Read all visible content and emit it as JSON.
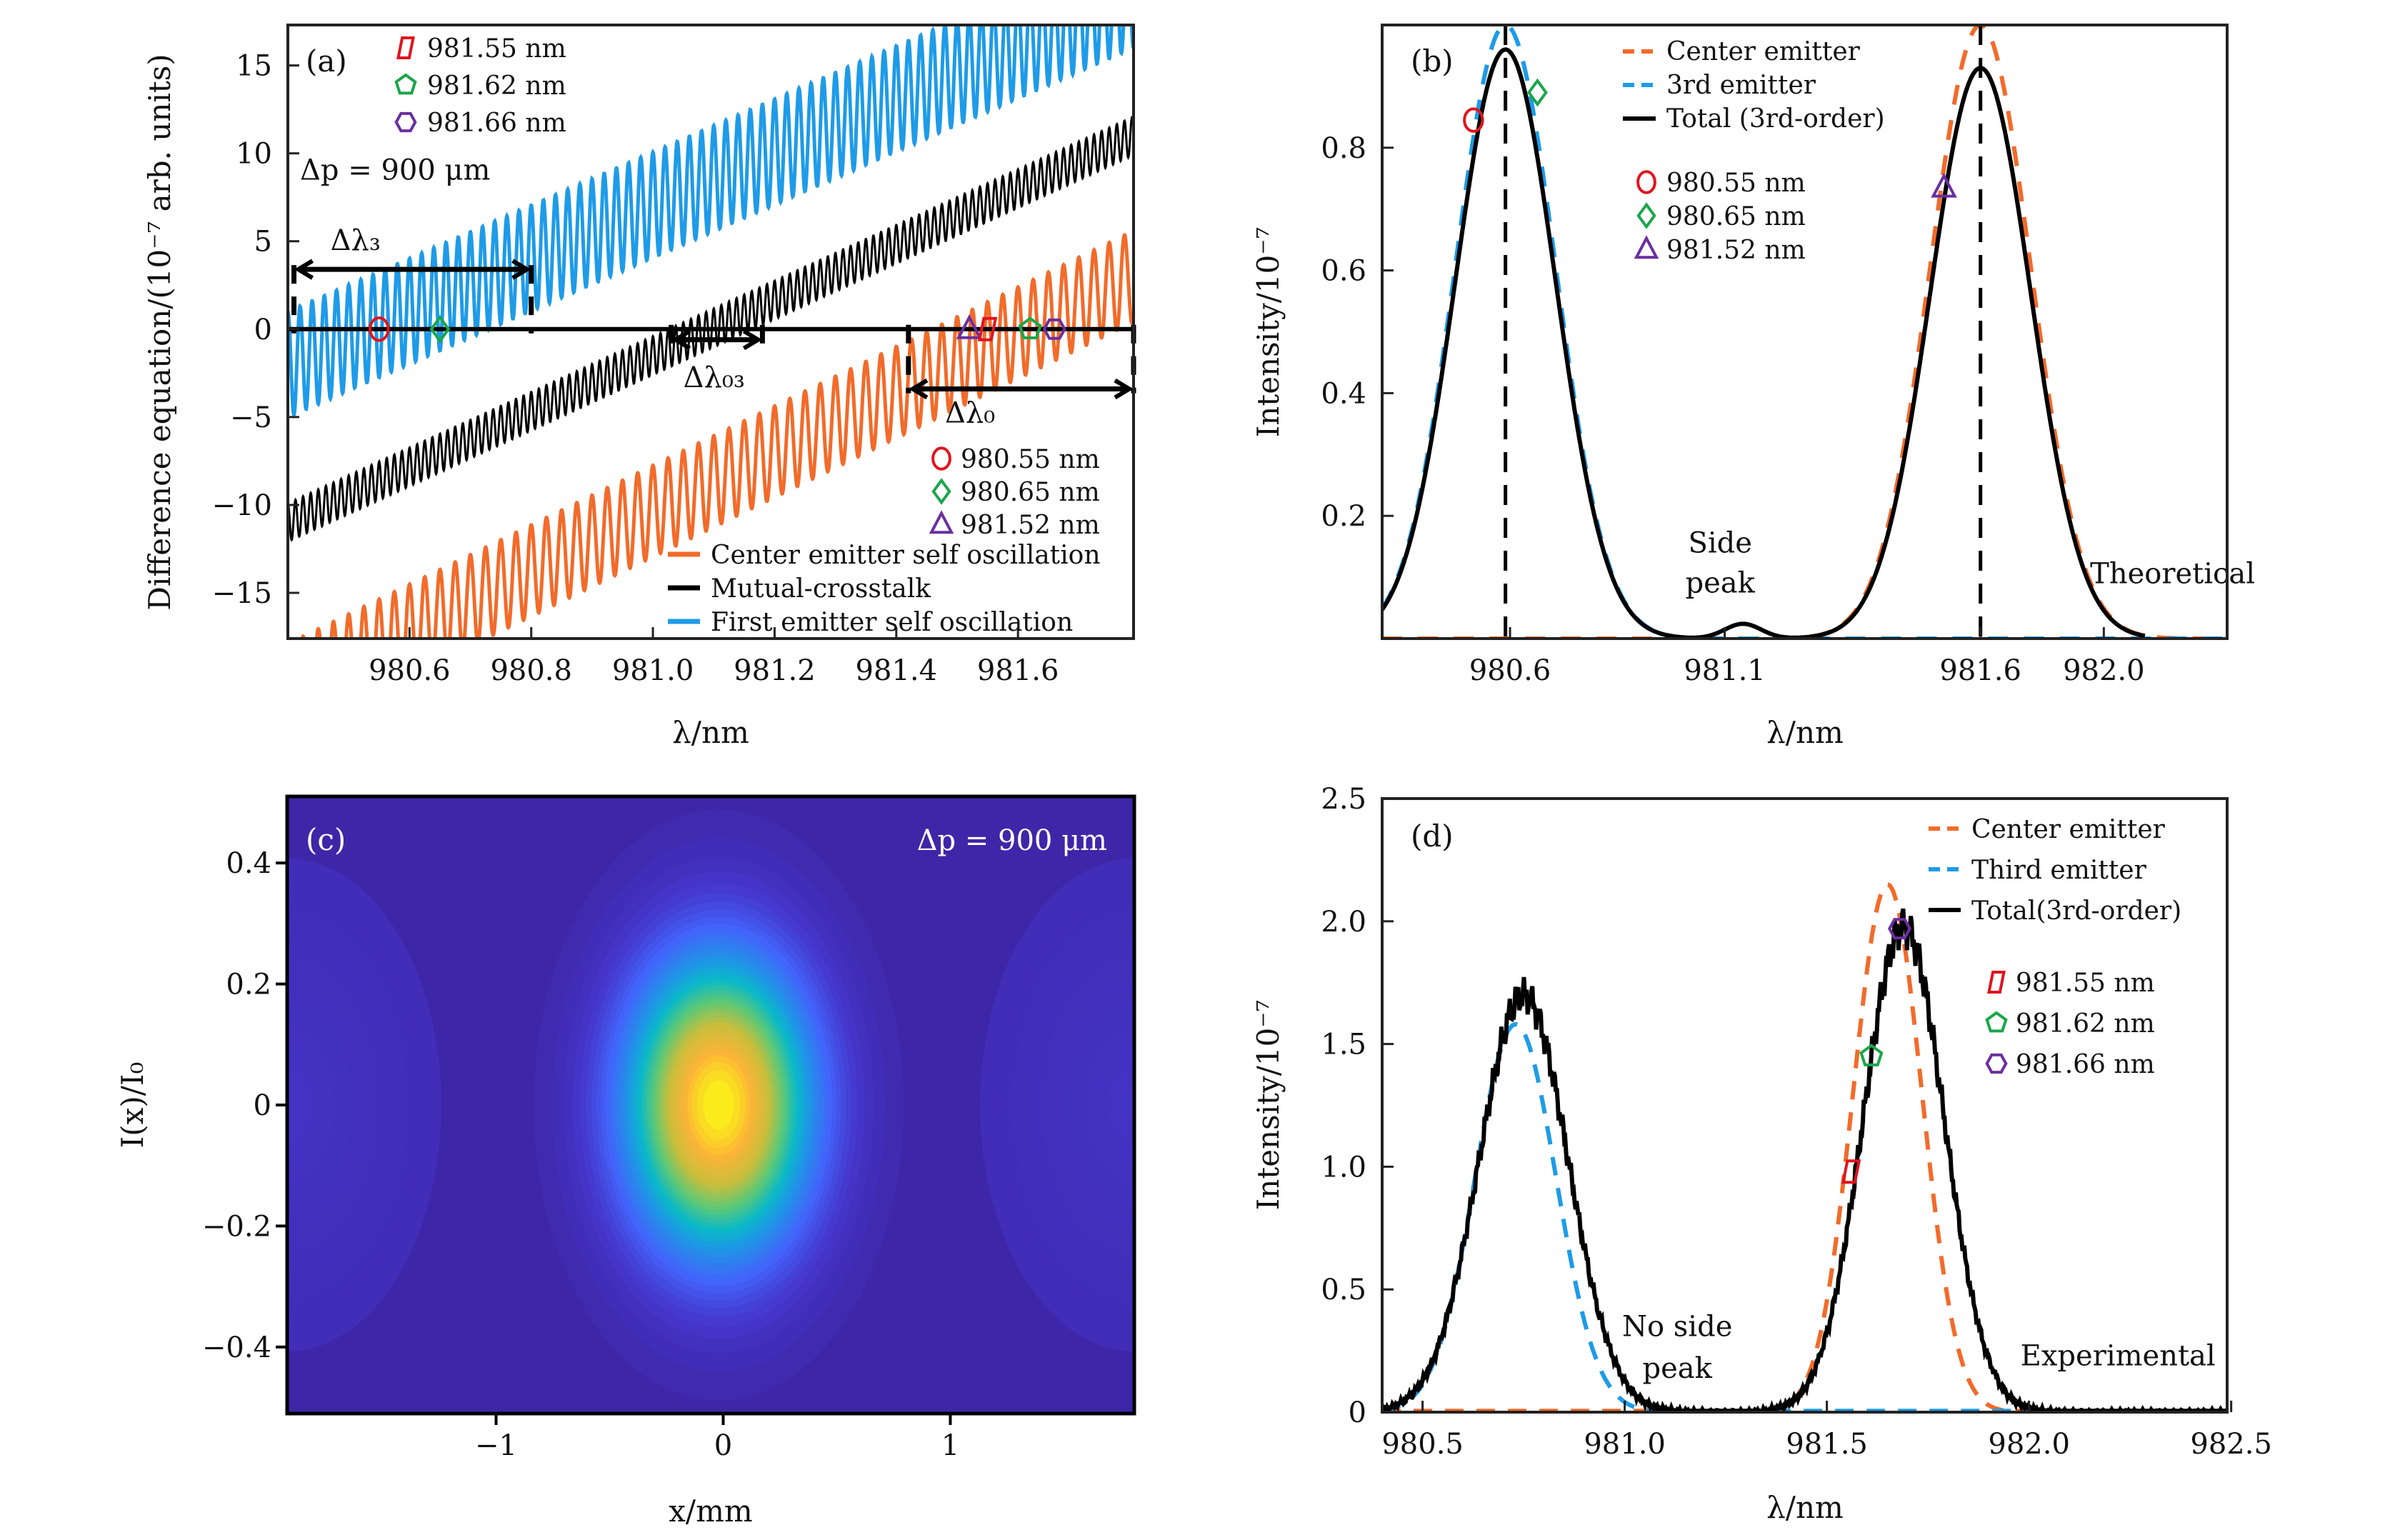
{
  "figure": {
    "colors": {
      "center": "#f26b2a",
      "first": "#1e9be8",
      "black": "#000000",
      "red": "#e0141e",
      "green": "#1aa64a",
      "purple": "#6a2fa0",
      "heatmap_bg": "#3e26a8"
    }
  },
  "chart_data": [
    {
      "id": "a",
      "type": "line",
      "panel_tag": "(a)",
      "title": "",
      "xlabel": "λ/nm",
      "ylabel": "Difference equation/(10⁻⁷ arb. units)",
      "xlim": [
        980.4,
        981.79
      ],
      "ylim": [
        -17.6,
        17.3
      ],
      "xticks": [
        980.6,
        980.8,
        981.0,
        981.2,
        981.4,
        981.6
      ],
      "xtick_labels": [
        "980.6",
        "980.8",
        "981.0",
        "981.2",
        "981.4",
        "981.6"
      ],
      "yticks": [
        -15,
        -10,
        -5,
        0,
        5,
        10,
        15
      ],
      "ytick_labels": [
        "−15",
        "−10",
        "−5",
        "0",
        "5",
        "10",
        "15"
      ],
      "grid": false,
      "series": [
        {
          "name": "Center emitter self oscillation",
          "color_key": "center",
          "style": "solid",
          "offset_at_xmin": -20.5,
          "offset_at_xmax": 3.0,
          "amplitude": 2.6,
          "period_nm": 0.025
        },
        {
          "name": "Mutual-crosstalk",
          "color_key": "black",
          "style": "solid",
          "offset_at_xmin": -11.0,
          "offset_at_xmax": 11.0,
          "amplitude": 1.1,
          "period_nm": 0.0125
        },
        {
          "name": "First emitter self oscillation",
          "color_key": "first",
          "style": "solid",
          "offset_at_xmin": -2.0,
          "offset_at_xmax": 19.0,
          "amplitude": 3.0,
          "period_nm": 0.02
        }
      ],
      "annotations": [
        {
          "text": "Δp = 900 μm",
          "x": 980.42,
          "y": 8.5
        },
        {
          "text": "Δλ₃",
          "x": 980.47,
          "y": 4.5
        },
        {
          "text": "Δλ₀₃",
          "x": 981.05,
          "y": -3.3
        },
        {
          "text": "Δλ₀",
          "x": 981.48,
          "y": -5.3
        }
      ],
      "spans": [
        {
          "label": "Δλ3",
          "x0": 980.41,
          "x1": 980.8,
          "y_arrow": 3.4
        },
        {
          "label": "Δλ03",
          "x0": 981.03,
          "x1": 981.18,
          "y_arrow": -0.6
        },
        {
          "label": "Δλ0",
          "x0": 981.42,
          "x1": 981.79,
          "y_arrow": -3.4
        }
      ],
      "markers": [
        {
          "label": "980.55 nm",
          "shape": "circle",
          "color_key": "red",
          "x": 980.55,
          "y": 0
        },
        {
          "label": "980.65 nm",
          "shape": "diamond",
          "color_key": "green",
          "x": 980.65,
          "y": 0
        },
        {
          "label": "981.52 nm",
          "shape": "triangle",
          "color_key": "purple",
          "x": 981.52,
          "y": 0
        },
        {
          "label": "981.55 nm",
          "shape": "parallelogram",
          "color_key": "red",
          "x": 981.55,
          "y": 0
        },
        {
          "label": "981.62 nm",
          "shape": "pentagon",
          "color_key": "green",
          "x": 981.62,
          "y": 0
        },
        {
          "label": "981.66 nm",
          "shape": "hexagon",
          "color_key": "purple",
          "x": 981.66,
          "y": 0
        }
      ],
      "legend_top_left": [
        "981.55 nm",
        "981.62 nm",
        "981.66 nm"
      ],
      "legend_bottom_right_markers": [
        "980.55 nm",
        "980.65 nm",
        "981.52 nm"
      ],
      "legend_bottom_right_lines": [
        "Center emitter self oscillation",
        "Mutual-crosstalk",
        "First emitter self oscillation"
      ],
      "legend_placement": "top-left and bottom-right"
    },
    {
      "id": "b",
      "type": "line",
      "panel_tag": "(b)",
      "xlabel": "λ/nm",
      "ylabel": "Intensity/10⁻⁷",
      "xlim": [
        980.35,
        982.2
      ],
      "ylim": [
        0,
        1.0
      ],
      "xtick_labels": [
        "980.6",
        "981.1",
        "981.6",
        "982.0"
      ],
      "xtick_positions": [
        980.63,
        981.1,
        981.66,
        981.93
      ],
      "yticks": [
        0.2,
        0.4,
        0.6,
        0.8
      ],
      "ytick_labels": [
        "0.2",
        "0.4",
        "0.6",
        "0.8"
      ],
      "grid": false,
      "series": [
        {
          "name": "Center emitter",
          "color_key": "center",
          "style": "dashed",
          "peaks": [
            {
              "x": 981.66,
              "height": 1.0,
              "sigma": 0.11
            }
          ]
        },
        {
          "name": "3rd emitter",
          "color_key": "first",
          "style": "dashed",
          "peaks": [
            {
              "x": 980.62,
              "height": 1.0,
              "sigma": 0.11
            }
          ]
        },
        {
          "name": "Total (3rd-order)",
          "color_key": "black",
          "style": "solid",
          "peaks": [
            {
              "x": 980.62,
              "height": 0.96,
              "sigma": 0.11
            },
            {
              "x": 981.66,
              "height": 0.93,
              "sigma": 0.11
            },
            {
              "x": 981.14,
              "height": 0.024,
              "sigma": 0.04
            }
          ]
        }
      ],
      "vlines": [
        980.62,
        981.66
      ],
      "markers": [
        {
          "label": "980.55 nm",
          "shape": "circle",
          "color_key": "red",
          "x": 980.55,
          "y": 0.845
        },
        {
          "label": "980.65 nm",
          "shape": "diamond",
          "color_key": "green",
          "x": 980.69,
          "y": 0.89
        },
        {
          "label": "981.52 nm",
          "shape": "triangle",
          "color_key": "purple",
          "x": 981.58,
          "y": 0.735
        }
      ],
      "annotations": [
        {
          "text": "Side",
          "x": 981.09,
          "y": 0.14
        },
        {
          "text": "peak",
          "x": 981.09,
          "y": 0.075
        },
        {
          "text": "Theoretical",
          "x": 981.9,
          "y": 0.09
        }
      ],
      "legend_lines": [
        "Center emitter",
        "3rd emitter",
        "Total (3rd-order)"
      ],
      "legend_markers": [
        "980.55 nm",
        "980.65 nm",
        "981.52 nm"
      ],
      "legend_placement": "top-center"
    },
    {
      "id": "c",
      "type": "heatmap",
      "panel_tag": "(c)",
      "xlabel": "x/mm",
      "ylabel": "I(x)/I₀",
      "xlim": [
        -1.92,
        1.81
      ],
      "ylim": [
        -0.51,
        0.51
      ],
      "xticks": [
        -1,
        0,
        1
      ],
      "xtick_labels": [
        "−1",
        "0",
        "1"
      ],
      "yticks": [
        -0.4,
        -0.2,
        0,
        0.2,
        0.4
      ],
      "ytick_labels": [
        "−0.4",
        "−0.2",
        "0",
        "0.2",
        "0.4"
      ],
      "annotations": [
        {
          "text": "Δp = 900 μm",
          "position": "top-right"
        }
      ],
      "spots": [
        {
          "x": -0.02,
          "y": 0,
          "sigma_x": 0.3,
          "sigma_y": 0.18,
          "peak": 1.0
        },
        {
          "x": -1.92,
          "y": 0,
          "sigma_x": 0.25,
          "sigma_y": 0.15,
          "peak": 0.06
        },
        {
          "x": 1.81,
          "y": 0,
          "sigma_x": 0.25,
          "sigma_y": 0.15,
          "peak": 0.06
        }
      ],
      "colormap": "parula"
    },
    {
      "id": "d",
      "type": "line",
      "panel_tag": "(d)",
      "xlabel": "λ/nm",
      "ylabel": "Intensity/10⁻⁷",
      "xlim": [
        980.4,
        982.49
      ],
      "ylim": [
        0,
        2.5
      ],
      "xticks": [
        980.5,
        981.0,
        981.5,
        982.0,
        982.5
      ],
      "xtick_labels": [
        "980.5",
        "981.0",
        "981.5",
        "982.0",
        "982.5"
      ],
      "yticks": [
        0,
        0.5,
        1.0,
        1.5,
        2.0,
        2.5
      ],
      "ytick_labels": [
        "0",
        "0.5",
        "1.0",
        "1.5",
        "2.0",
        "2.5"
      ],
      "grid": false,
      "series": [
        {
          "name": "Center emitter",
          "color_key": "center",
          "style": "dashed",
          "peaks": [
            {
              "x": 981.65,
              "height": 2.15,
              "sigma": 0.085
            }
          ]
        },
        {
          "name": "Third emitter",
          "color_key": "first",
          "style": "dashed",
          "peaks": [
            {
              "x": 980.73,
              "height": 1.58,
              "sigma": 0.1
            }
          ]
        },
        {
          "name": "Total(3rd-order)",
          "color_key": "black",
          "style": "solid",
          "peaks": [
            {
              "x": 980.75,
              "height": 1.7,
              "sigma": 0.11
            },
            {
              "x": 981.69,
              "height": 1.98,
              "sigma": 0.1
            }
          ]
        }
      ],
      "markers": [
        {
          "label": "981.55 nm",
          "shape": "parallelogram",
          "color_key": "red",
          "x": 981.56,
          "y": 0.98
        },
        {
          "label": "981.62 nm",
          "shape": "pentagon",
          "color_key": "green",
          "x": 981.61,
          "y": 1.45
        },
        {
          "label": "981.66 nm",
          "shape": "hexagon",
          "color_key": "purple",
          "x": 981.68,
          "y": 1.97
        }
      ],
      "annotations": [
        {
          "text": "No side",
          "x": 981.13,
          "y": 0.31
        },
        {
          "text": "peak",
          "x": 981.13,
          "y": 0.14
        },
        {
          "text": "Experimental",
          "x": 982.22,
          "y": 0.19
        }
      ],
      "legend_lines": [
        "Center emitter",
        "Third emitter",
        "Total(3rd-order)"
      ],
      "legend_markers": [
        "981.55 nm",
        "981.62 nm",
        "981.66 nm"
      ],
      "legend_placement": "top-right"
    }
  ]
}
